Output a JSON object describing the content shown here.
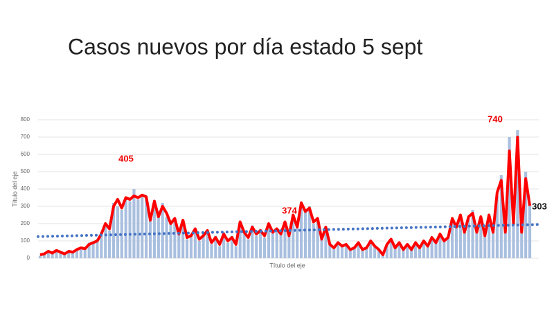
{
  "chart_data": {
    "type": "bar",
    "title": "Casos nuevos por día estado 5 sept",
    "x_label": "Título del eje",
    "y_label": "Título del eje",
    "annotations": [
      "405",
      "374",
      "740",
      "303"
    ],
    "ylim": [
      0,
      800
    ],
    "yticks": [
      0,
      100,
      200,
      300,
      400,
      500,
      600,
      700,
      800
    ],
    "grid": true,
    "categories": [
      null,
      null,
      null,
      null,
      null,
      null,
      null,
      null,
      null,
      null,
      null,
      null,
      null,
      null,
      null,
      null,
      null,
      null,
      null,
      null,
      null,
      null,
      null,
      null,
      null,
      null,
      null,
      null,
      null,
      null,
      null,
      null,
      null,
      null,
      null,
      null,
      null,
      null,
      null,
      null,
      null,
      null,
      null,
      null,
      null,
      null,
      null,
      null,
      null,
      null,
      null,
      null,
      null,
      null,
      null,
      null,
      null,
      null,
      null,
      null,
      null,
      null,
      null,
      null,
      null,
      null,
      null,
      null,
      null,
      null,
      null,
      null,
      null,
      null,
      null,
      null,
      null,
      null,
      null,
      null,
      null,
      null,
      null,
      null,
      null,
      null,
      null,
      null,
      null,
      null,
      null,
      null,
      null,
      null,
      null,
      null,
      null,
      null,
      null,
      null,
      null,
      null,
      null,
      null,
      null,
      null,
      null,
      null,
      null,
      null,
      null,
      null,
      null,
      null,
      null,
      null,
      null,
      null,
      null,
      null,
      null
    ],
    "series": [
      {
        "type": "bar",
        "color": "#a9bfdf",
        "values": [
          15,
          30,
          45,
          25,
          50,
          30,
          20,
          45,
          30,
          55,
          65,
          50,
          90,
          85,
          110,
          150,
          180,
          160,
          320,
          300,
          280,
          340,
          330,
          400,
          340,
          370,
          350,
          250,
          300,
          260,
          320,
          240,
          210,
          220,
          150,
          200,
          110,
          140,
          160,
          100,
          140,
          150,
          80,
          130,
          70,
          150,
          90,
          130,
          70,
          200,
          160,
          110,
          190,
          130,
          170,
          120,
          190,
          160,
          160,
          150,
          200,
          140,
          240,
          190,
          300,
          280,
          300,
          200,
          220,
          120,
          170,
          90,
          55,
          85,
          75,
          70,
          55,
          65,
          85,
          45,
          65,
          95,
          75,
          45,
          25,
          75,
          105,
          65,
          85,
          55,
          75,
          55,
          85,
          65,
          95,
          75,
          115,
          95,
          130,
          110,
          130,
          220,
          190,
          240,
          160,
          230,
          280,
          160,
          230,
          140,
          240,
          160,
          360,
          480,
          170,
          700,
          220,
          740,
          180,
          500,
          303
        ]
      },
      {
        "type": "line",
        "color": "#ff0000",
        "values": [
          20,
          25,
          40,
          30,
          45,
          35,
          25,
          40,
          35,
          50,
          60,
          55,
          80,
          90,
          100,
          140,
          200,
          170,
          300,
          340,
          290,
          350,
          340,
          360,
          350,
          365,
          355,
          220,
          330,
          240,
          300,
          260,
          200,
          230,
          140,
          220,
          120,
          130,
          170,
          110,
          130,
          160,
          90,
          120,
          80,
          140,
          100,
          120,
          80,
          210,
          150,
          120,
          180,
          140,
          160,
          130,
          200,
          150,
          170,
          140,
          210,
          130,
          250,
          180,
          320,
          270,
          290,
          210,
          230,
          110,
          180,
          80,
          60,
          90,
          70,
          80,
          50,
          60,
          90,
          50,
          60,
          100,
          70,
          50,
          20,
          80,
          110,
          60,
          90,
          50,
          80,
          50,
          90,
          60,
          100,
          70,
          120,
          90,
          140,
          100,
          120,
          230,
          180,
          250,
          150,
          240,
          260,
          150,
          240,
          130,
          250,
          150,
          380,
          450,
          150,
          620,
          200,
          700,
          150,
          460,
          303
        ]
      }
    ],
    "trend": {
      "color": "#4472c4",
      "values": [
        125,
        195
      ]
    }
  }
}
